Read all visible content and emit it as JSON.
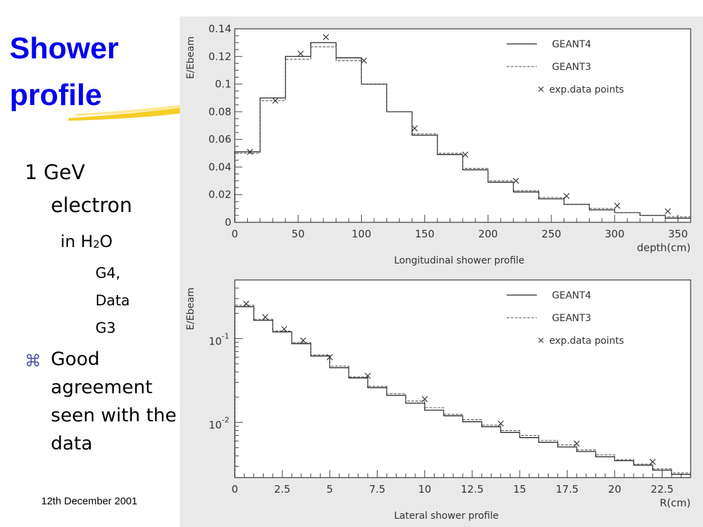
{
  "slide": {
    "title_line1": "Shower",
    "title_line2": "profile",
    "bullets": {
      "electron_line1": "1 GeV",
      "electron_line2": "electron",
      "medium_prefix": "in H",
      "medium_sub": "2",
      "medium_suffix": "O",
      "g4": "G4,",
      "data": "Data",
      "g3": "G3",
      "bullet_symbol": "⌘",
      "good_lines": [
        "Good",
        "agreement",
        "seen with the",
        "data"
      ]
    },
    "footer_date": "12th December 2001",
    "colors": {
      "title": "#0000ee",
      "swoosh": "#f5c400",
      "figure_bg": "#e9e9e9"
    }
  },
  "chart_data": [
    {
      "type": "line",
      "title": "Longitudinal shower profile",
      "xlabel": "depth(cm)",
      "ylabel": "E/Ebeam",
      "xlim": [
        0,
        360
      ],
      "ylim": [
        0,
        0.14
      ],
      "x_ticks": [
        0,
        50,
        100,
        150,
        200,
        250,
        300,
        350
      ],
      "y_ticks": [
        0,
        0.02,
        0.04,
        0.06,
        0.08,
        0.1,
        0.12,
        0.14
      ],
      "x_tick_labels": [
        "0",
        "50",
        "100",
        "150",
        "200",
        "250",
        "300",
        "350"
      ],
      "y_tick_labels": [
        "0",
        "0.02",
        "0.04",
        "0.06",
        "0.08",
        "0.1",
        "0.12",
        "0.14"
      ],
      "legend": [
        {
          "label": "GEANT4",
          "style": "solid"
        },
        {
          "label": "GEANT3",
          "style": "dashed"
        },
        {
          "label": "exp.data points",
          "style": "marker-x"
        }
      ],
      "legend_position": "top-right",
      "bin_edges": [
        0,
        20,
        40,
        60,
        80,
        100,
        120,
        140,
        160,
        180,
        200,
        220,
        240,
        260,
        280,
        300,
        320,
        340,
        360
      ],
      "series": [
        {
          "name": "GEANT4",
          "values": [
            0.051,
            0.09,
            0.12,
            0.13,
            0.119,
            0.1,
            0.08,
            0.063,
            0.049,
            0.038,
            0.029,
            0.022,
            0.017,
            0.013,
            0.009,
            0.007,
            0.005,
            0.003
          ]
        },
        {
          "name": "GEANT3",
          "values": [
            0.05,
            0.088,
            0.118,
            0.127,
            0.117,
            0.1,
            0.08,
            0.064,
            0.05,
            0.039,
            0.03,
            0.023,
            0.018,
            0.013,
            0.01,
            0.007,
            0.005,
            0.004
          ]
        },
        {
          "name": "exp.data points",
          "x": [
            12,
            32,
            52,
            72,
            102,
            142,
            182,
            222,
            262,
            302,
            342
          ],
          "values": [
            0.051,
            0.088,
            0.122,
            0.134,
            0.117,
            0.068,
            0.049,
            0.03,
            0.019,
            0.012,
            0.008
          ]
        }
      ]
    },
    {
      "type": "line",
      "title": "Lateral shower profile",
      "xlabel": "R(cm)",
      "ylabel": "E/Ebeam",
      "yscale": "log",
      "xlim": [
        0,
        24
      ],
      "ylim": [
        0.0022,
        0.5
      ],
      "x_ticks": [
        0,
        2.5,
        5,
        7.5,
        10,
        12.5,
        15,
        17.5,
        20,
        22.5
      ],
      "x_tick_labels": [
        "0",
        "2.5",
        "5",
        "7.5",
        "10",
        "12.5",
        "15",
        "17.5",
        "20",
        "22.5"
      ],
      "y_major_ticks": [
        0.01,
        0.1
      ],
      "y_tick_bases": [
        "10",
        "10"
      ],
      "y_tick_exponents": [
        "-2",
        "-1"
      ],
      "legend": [
        {
          "label": "GEANT4",
          "style": "solid"
        },
        {
          "label": "GEANT3",
          "style": "dashed"
        },
        {
          "label": "exp.data points",
          "style": "marker-x"
        }
      ],
      "legend_position": "top-right",
      "bin_edges": [
        0,
        1,
        2,
        3,
        4,
        5,
        6,
        7,
        8,
        9,
        10,
        11,
        12,
        13,
        14,
        15,
        16,
        17,
        18,
        19,
        20,
        21,
        22,
        23,
        24
      ],
      "series": [
        {
          "name": "GEANT4",
          "values": [
            0.24,
            0.165,
            0.12,
            0.087,
            0.062,
            0.045,
            0.034,
            0.026,
            0.021,
            0.017,
            0.014,
            0.012,
            0.0102,
            0.0089,
            0.0076,
            0.0066,
            0.0058,
            0.0051,
            0.0045,
            0.0039,
            0.0035,
            0.0031,
            0.0027,
            0.0024
          ]
        },
        {
          "name": "GEANT3",
          "values": [
            0.25,
            0.17,
            0.123,
            0.09,
            0.064,
            0.047,
            0.035,
            0.027,
            0.022,
            0.018,
            0.015,
            0.0125,
            0.0108,
            0.0093,
            0.008,
            0.007,
            0.0061,
            0.0054,
            0.0047,
            0.0041,
            0.0036,
            0.0032,
            0.0028,
            0.0025
          ]
        },
        {
          "name": "exp.data points",
          "x": [
            0.6,
            1.6,
            2.6,
            3.6,
            5,
            7,
            10,
            14,
            18,
            22
          ],
          "values": [
            0.26,
            0.18,
            0.13,
            0.095,
            0.06,
            0.036,
            0.019,
            0.0097,
            0.0056,
            0.0034
          ]
        }
      ]
    }
  ]
}
